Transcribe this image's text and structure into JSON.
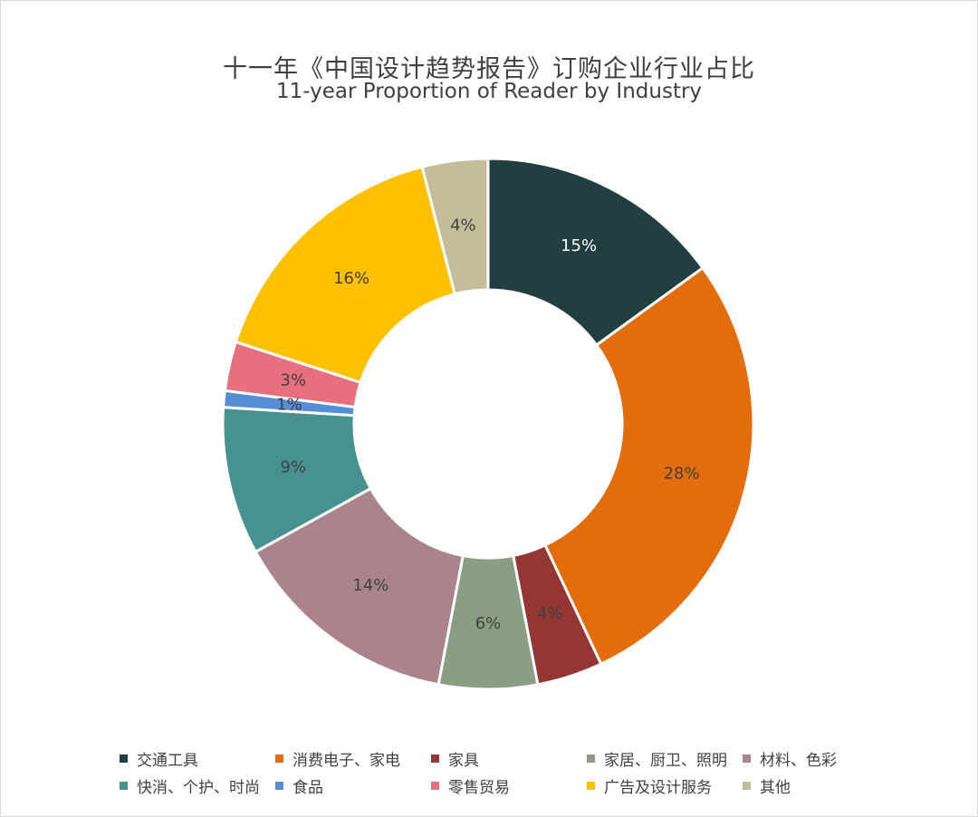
{
  "chart_data": {
    "type": "pie",
    "variant": "donut",
    "title": "十一年《中国设计趋势报告》订购企业行业占比",
    "subtitle": "11-year Proportion of Reader by Industry",
    "slices": [
      {
        "label": "交通工具",
        "value": 15,
        "display": "15%",
        "color": "#213f40",
        "label_color": "#ffffff"
      },
      {
        "label": "消费电子、家电",
        "value": 28,
        "display": "28%",
        "color": "#e36c0d",
        "label_color": "#404040"
      },
      {
        "label": "家具",
        "value": 4,
        "display": "4%",
        "color": "#943634",
        "label_color": "#404040"
      },
      {
        "label": "家居、厨卫、照明",
        "value": 6,
        "display": "6%",
        "color": "#8a9e84",
        "label_color": "#404040"
      },
      {
        "label": "材料、色彩",
        "value": 14,
        "display": "14%",
        "color": "#ab848b",
        "label_color": "#404040"
      },
      {
        "label": "快消、个护、时尚",
        "value": 9,
        "display": "9%",
        "color": "#479290",
        "label_color": "#404040"
      },
      {
        "label": "食品",
        "value": 1,
        "display": "1%",
        "color": "#558ed5",
        "label_color": "#404040"
      },
      {
        "label": "零售贸易",
        "value": 3,
        "display": "3%",
        "color": "#e8707e",
        "label_color": "#404040"
      },
      {
        "label": "广告及设计服务",
        "value": 16,
        "display": "16%",
        "color": "#ffc000",
        "label_color": "#404040"
      },
      {
        "label": "其他",
        "value": 4,
        "display": "4%",
        "color": "#c4bd97",
        "label_color": "#404040"
      }
    ],
    "legend_position": "bottom"
  }
}
